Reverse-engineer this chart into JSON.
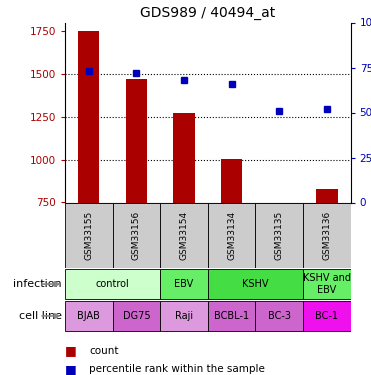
{
  "title": "GDS989 / 40494_at",
  "samples": [
    "GSM33155",
    "GSM33156",
    "GSM33154",
    "GSM33134",
    "GSM33135",
    "GSM33136"
  ],
  "counts": [
    1750,
    1470,
    1270,
    1005,
    750,
    830
  ],
  "percentile_ranks": [
    73,
    72,
    68,
    66,
    51,
    52
  ],
  "ylim_left": [
    750,
    1800
  ],
  "ylim_right": [
    0,
    100
  ],
  "yticks_left": [
    750,
    1000,
    1250,
    1500,
    1750
  ],
  "yticks_right": [
    0,
    25,
    50,
    75,
    100
  ],
  "bar_color": "#aa0000",
  "dot_color": "#0000bb",
  "infection_groups": [
    {
      "label": "control",
      "span": [
        0,
        2
      ],
      "color": "#ccffcc"
    },
    {
      "label": "EBV",
      "span": [
        2,
        3
      ],
      "color": "#66ee66"
    },
    {
      "label": "KSHV",
      "span": [
        3,
        5
      ],
      "color": "#44dd44"
    },
    {
      "label": "KSHV and\nEBV",
      "span": [
        5,
        6
      ],
      "color": "#66ee66"
    }
  ],
  "cell_lines": [
    "BJAB",
    "DG75",
    "Raji",
    "BCBL-1",
    "BC-3",
    "BC-1"
  ],
  "cell_line_colors": [
    "#dd88dd",
    "#cc66cc",
    "#dd88dd",
    "#cc66cc",
    "#cc66cc",
    "#ee22ee"
  ],
  "infection_row_label": "infection",
  "cell_line_row_label": "cell line",
  "legend_count_label": "count",
  "legend_percentile_label": "percentile rank within the sample",
  "gsm_bg_color": "#cccccc",
  "fig_width": 3.71,
  "fig_height": 3.75,
  "dpi": 100
}
